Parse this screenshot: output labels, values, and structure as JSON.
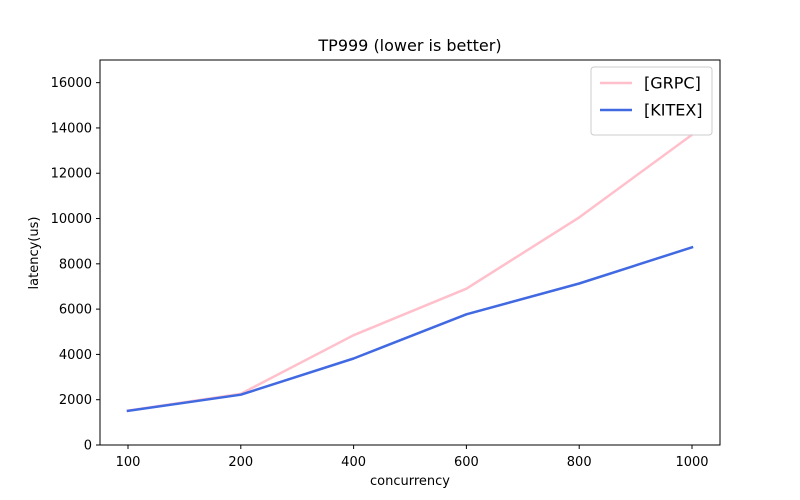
{
  "chart_data": {
    "type": "line",
    "title": "TP999 (lower is better)",
    "xlabel": "concurrency",
    "ylabel": "latency(us)",
    "categories": [
      "100",
      "200",
      "400",
      "600",
      "800",
      "1000"
    ],
    "ylim": [
      0,
      17000
    ],
    "yticks": [
      0,
      2000,
      4000,
      6000,
      8000,
      10000,
      12000,
      14000,
      16000
    ],
    "grid": false,
    "legend_position": "top-right",
    "series": [
      {
        "name": "[GRPC]",
        "color": "#ffc0cb",
        "values": [
          1520,
          2260,
          4850,
          6900,
          10050,
          13700
        ]
      },
      {
        "name": "[KITEX]",
        "color": "#4169e1",
        "values": [
          1510,
          2220,
          3820,
          5770,
          7130,
          8730
        ]
      }
    ]
  }
}
